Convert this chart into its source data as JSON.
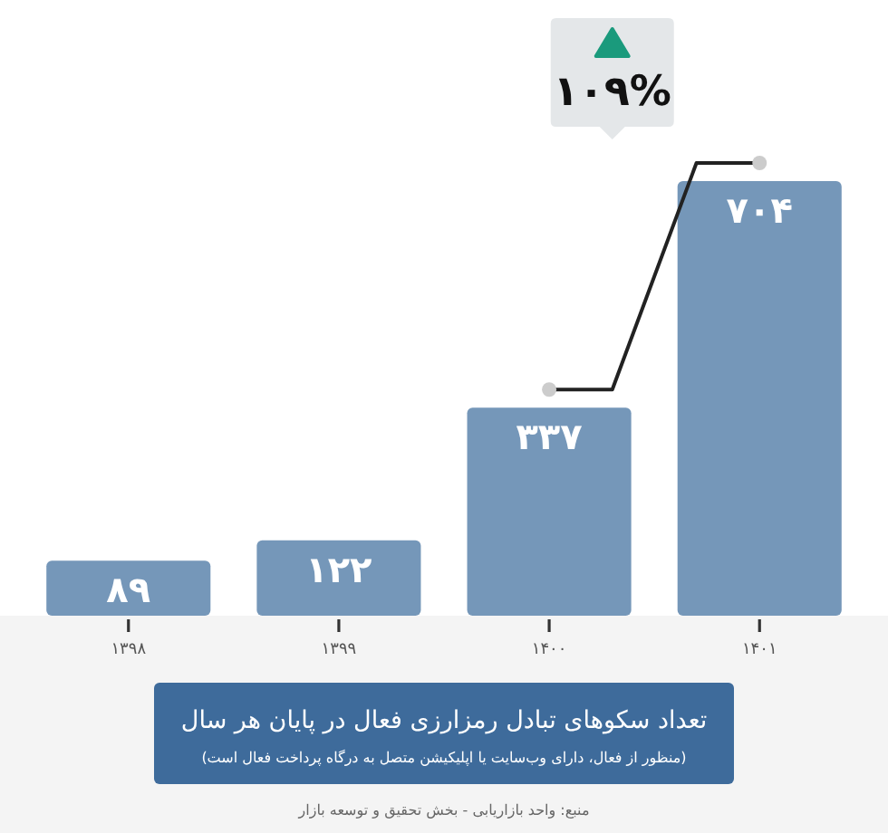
{
  "chart_data": {
    "type": "bar",
    "title": "تعداد سکوهای تبادل رمزارزی فعال در پایان هر سال",
    "subtitle": "(منظور از فعال، دارای وب‌سایت یا اپلیکیشن متصل به درگاه پرداخت فعال است)",
    "categories": [
      "۱۳۹۸",
      "۱۳۹۹",
      "۱۴۰۰",
      "۱۴۰۱"
    ],
    "values": [
      89,
      122,
      337,
      704
    ],
    "value_labels": [
      "۸۹",
      "۱۲۲",
      "۳۳۷",
      "۷۰۴"
    ],
    "color": "#7597b9",
    "annotations": [
      "۱۰۹%",
      "منبع: واحد بازاریابی - بخش تحقیق و توسعه بازار"
    ]
  }
}
